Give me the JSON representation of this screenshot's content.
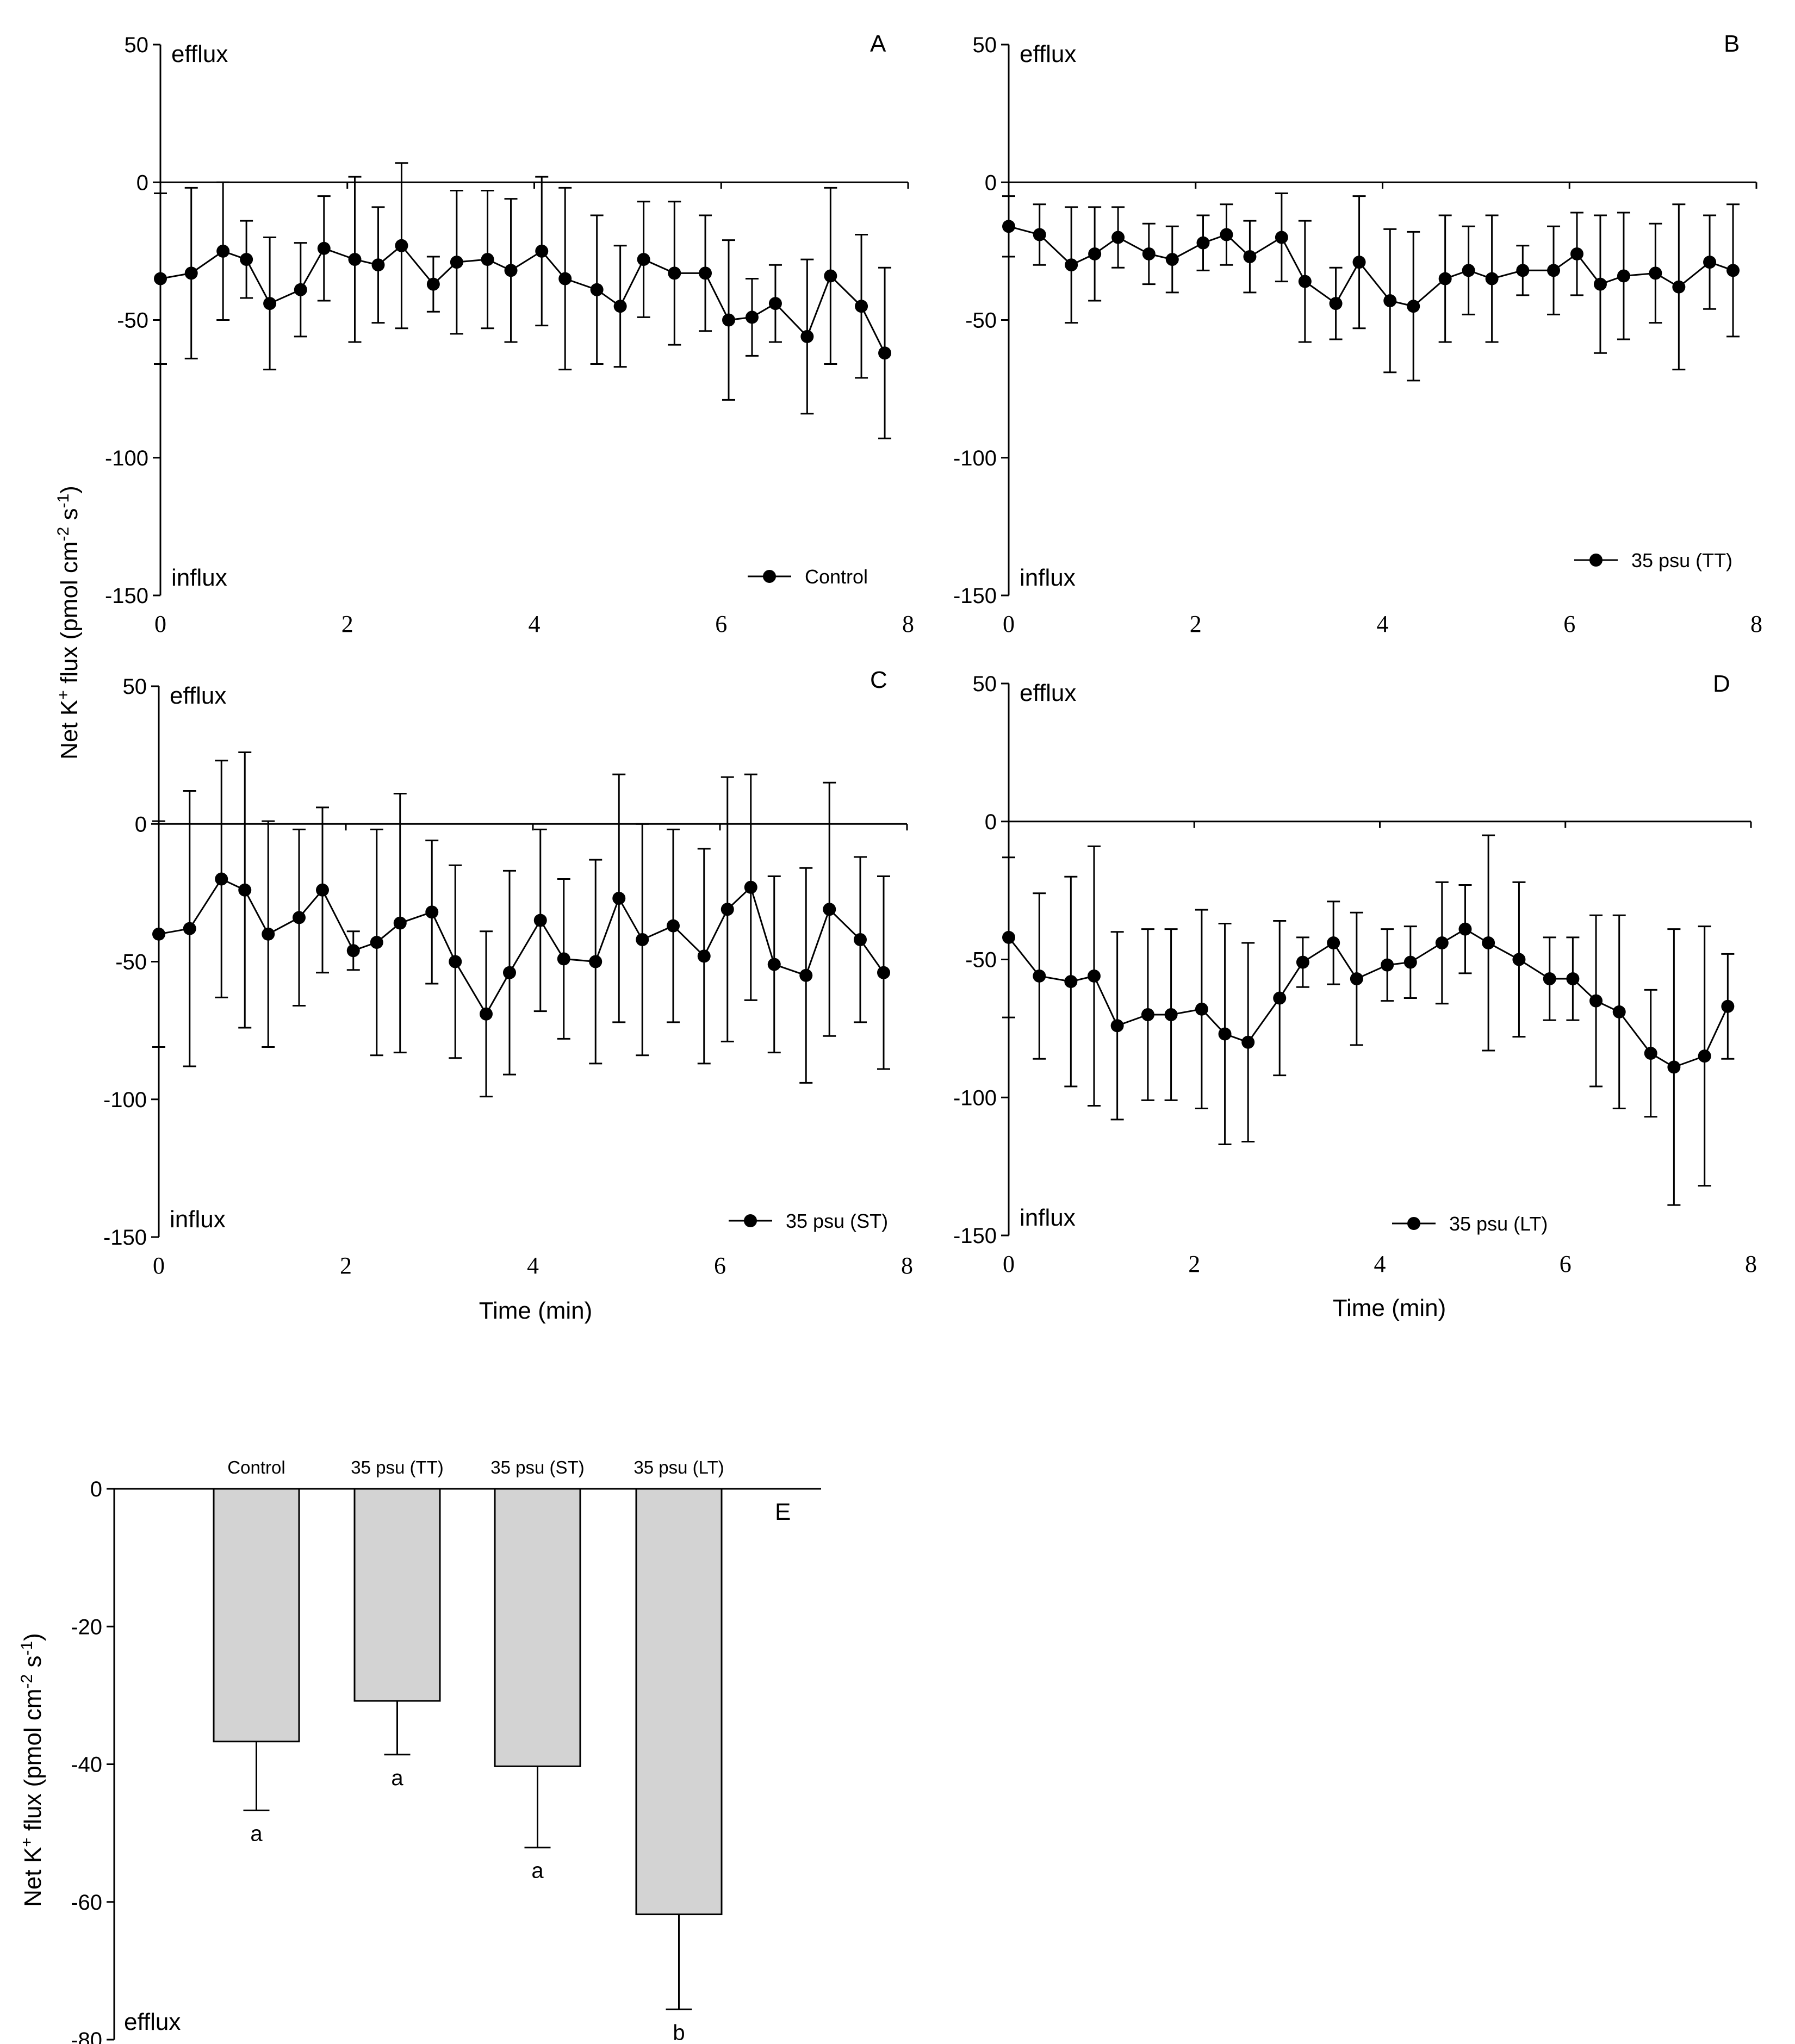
{
  "chart_data": [
    {
      "id": "A",
      "type": "line",
      "panel_label": "A",
      "legend": "Control",
      "xlim": [
        0,
        8
      ],
      "ylim": [
        -150,
        50
      ],
      "xticks": [
        "0",
        "2",
        "4",
        "6",
        "8"
      ],
      "yticks": [
        "50",
        "0",
        "-50",
        "-100",
        "-150"
      ],
      "top_note": "efflux",
      "bottom_note": "influx",
      "x": [
        0,
        0.33,
        0.67,
        0.92,
        1.17,
        1.5,
        1.75,
        2.08,
        2.33,
        2.58,
        2.92,
        3.17,
        3.5,
        3.75,
        4.08,
        4.33,
        4.67,
        4.92,
        5.17,
        5.5,
        5.83,
        6.08,
        6.33,
        6.58,
        6.92,
        7.17,
        7.5,
        7.75
      ],
      "y": [
        -35,
        -33,
        -25,
        -28,
        -44,
        -39,
        -24,
        -28,
        -30,
        -23,
        -37,
        -29,
        -28,
        -32,
        -25,
        -35,
        -39,
        -45,
        -28,
        -33,
        -33,
        -50,
        -49,
        -44,
        -56,
        -34,
        -45,
        -62
      ],
      "err": [
        31,
        31,
        25,
        14,
        24,
        17,
        19,
        30,
        21,
        30,
        10,
        26,
        25,
        26,
        27,
        33,
        27,
        22,
        21,
        26,
        21,
        29,
        14,
        14,
        28,
        32,
        26,
        31
      ]
    },
    {
      "id": "B",
      "type": "line",
      "panel_label": "B",
      "legend": "35 psu (TT)",
      "xlim": [
        0,
        8
      ],
      "ylim": [
        -150,
        50
      ],
      "xticks": [
        "0",
        "2",
        "4",
        "6",
        "8"
      ],
      "yticks": [
        "50",
        "0",
        "-50",
        "-100",
        "-150"
      ],
      "top_note": "efflux",
      "bottom_note": "influx",
      "x": [
        0,
        0.33,
        0.67,
        0.92,
        1.17,
        1.5,
        1.75,
        2.08,
        2.33,
        2.58,
        2.92,
        3.17,
        3.5,
        3.75,
        4.08,
        4.33,
        4.67,
        4.92,
        5.17,
        5.5,
        5.83,
        6.08,
        6.33,
        6.58,
        6.92,
        7.17,
        7.5,
        7.75
      ],
      "y": [
        -16,
        -19,
        -30,
        -26,
        -20,
        -26,
        -28,
        -22,
        -19,
        -27,
        -20,
        -36,
        -44,
        -29,
        -43,
        -45,
        -35,
        -32,
        -35,
        -32,
        -32,
        -26,
        -37,
        -34,
        -33,
        -38,
        -29,
        -32
      ],
      "err": [
        11,
        11,
        21,
        17,
        11,
        11,
        12,
        10,
        11,
        13,
        16,
        22,
        13,
        24,
        26,
        27,
        23,
        16,
        23,
        9,
        16,
        15,
        25,
        23,
        18,
        30,
        17,
        24
      ]
    },
    {
      "id": "C",
      "type": "line",
      "panel_label": "C",
      "legend": "35 psu (ST)",
      "xlim": [
        0,
        8
      ],
      "ylim": [
        -150,
        50
      ],
      "xticks": [
        "0",
        "2",
        "4",
        "6",
        "8"
      ],
      "yticks": [
        "50",
        "0",
        "-50",
        "-100",
        "-150"
      ],
      "top_note": "efflux",
      "bottom_note": "influx",
      "x": [
        0,
        0.33,
        0.67,
        0.92,
        1.17,
        1.5,
        1.75,
        2.08,
        2.33,
        2.58,
        2.92,
        3.17,
        3.5,
        3.75,
        4.08,
        4.33,
        4.67,
        4.92,
        5.17,
        5.5,
        5.83,
        6.08,
        6.33,
        6.58,
        6.92,
        7.17,
        7.5,
        7.75
      ],
      "y": [
        -40,
        -38,
        -20,
        -24,
        -40,
        -34,
        -24,
        -46,
        -43,
        -36,
        -32,
        -50,
        -69,
        -54,
        -35,
        -49,
        -50,
        -27,
        -42,
        -37,
        -48,
        -31,
        -23,
        -51,
        -55,
        -31,
        -42,
        -54
      ],
      "err": [
        41,
        50,
        43,
        50,
        41,
        32,
        30,
        7,
        41,
        47,
        26,
        35,
        30,
        37,
        33,
        29,
        37,
        45,
        42,
        35,
        39,
        48,
        41,
        32,
        39,
        46,
        30,
        35
      ]
    },
    {
      "id": "D",
      "type": "line",
      "panel_label": "D",
      "legend": "35 psu (LT)",
      "xlim": [
        0,
        8
      ],
      "ylim": [
        -150,
        50
      ],
      "xticks": [
        "0",
        "2",
        "4",
        "6",
        "8"
      ],
      "yticks": [
        "50",
        "0",
        "-50",
        "-100",
        "-150"
      ],
      "top_note": "efflux",
      "bottom_note": "influx",
      "x": [
        0,
        0.33,
        0.67,
        0.92,
        1.17,
        1.5,
        1.75,
        2.08,
        2.33,
        2.58,
        2.92,
        3.17,
        3.5,
        3.75,
        4.08,
        4.33,
        4.67,
        4.92,
        5.17,
        5.5,
        5.83,
        6.08,
        6.33,
        6.58,
        6.92,
        7.17,
        7.5,
        7.75
      ],
      "y": [
        -42,
        -56,
        -58,
        -56,
        -74,
        -70,
        -70,
        -68,
        -77,
        -80,
        -64,
        -51,
        -44,
        -57,
        -52,
        -51,
        -44,
        -39,
        -44,
        -50,
        -57,
        -57,
        -65,
        -69,
        -84,
        -89,
        -85,
        -67
      ],
      "err": [
        29,
        30,
        38,
        47,
        34,
        31,
        31,
        36,
        40,
        36,
        28,
        9,
        15,
        24,
        13,
        13,
        22,
        16,
        39,
        28,
        15,
        15,
        31,
        35,
        23,
        50,
        47,
        19
      ]
    },
    {
      "id": "E",
      "type": "bar",
      "panel_label": "E",
      "categories": [
        "Control",
        "35 psu (TT)",
        "35 psu (ST)",
        "35 psu (LT)"
      ],
      "values": [
        -36.7,
        -30.8,
        -40.3,
        -61.8
      ],
      "err": [
        10.0,
        7.8,
        11.8,
        13.8
      ],
      "significance": [
        "a",
        "a",
        "a",
        "b"
      ],
      "ylim": [
        -80,
        0
      ],
      "yticks": [
        "0",
        "-20",
        "-40",
        "-60",
        "-80"
      ],
      "bottom_note": "efflux",
      "ylabel": "Net K⁺ flux (pmol cm⁻² s⁻¹)"
    }
  ],
  "labels": {
    "ylabel_parts": [
      "Net K",
      "+",
      " flux (pmol cm",
      "-2",
      " s",
      "-1",
      ")"
    ],
    "xlabel": "Time (min)"
  }
}
